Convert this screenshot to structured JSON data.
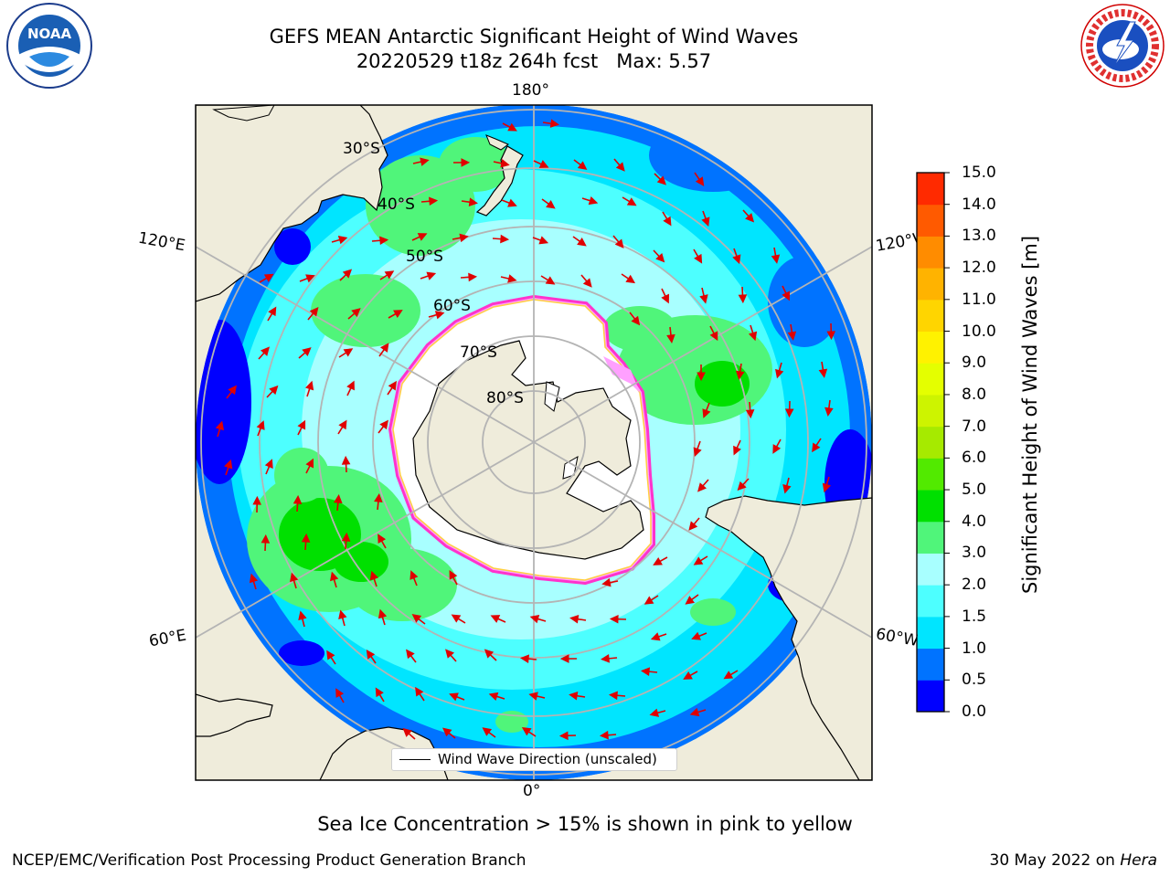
{
  "header": {
    "title_line1": "GEFS MEAN Antarctic Significant Height of Wind Waves",
    "title_line2": "20220529 t18z 264h fcst   Max: 5.57"
  },
  "logos": {
    "noaa_text": "NOAA",
    "noaa_ring_text": "NATIONAL OCEANIC AND ATMOSPHERIC ADMINISTRATION · U.S. DEPARTMENT OF COMMERCE",
    "nws_ring_text": "NATIONAL WEATHER SERVICE"
  },
  "map": {
    "projection": "south-polar-stereographic",
    "longitude_labels": {
      "top": "180°",
      "bottom": "0°",
      "left_upper": "120°E",
      "left_lower": "60°E",
      "right_upper": "120°W",
      "right_lower": "60°W"
    },
    "latitude_labels": [
      "30°S",
      "40°S",
      "50°S",
      "60°S",
      "70°S",
      "80°S"
    ],
    "legend_label": "Wind Wave Direction (unscaled)",
    "colors": {
      "land": "#efecdb",
      "ice": "#ffffff",
      "ice_edge": [
        "#ff33cc",
        "#ffa0ff",
        "#ffd040"
      ],
      "arrow": "#e00000",
      "gridline": "#b4b4b4"
    }
  },
  "colorbar": {
    "label": "Significant Height of Wind Waves [m]",
    "ticks": [
      "0.0",
      "0.5",
      "1.0",
      "1.5",
      "2.0",
      "3.0",
      "4.0",
      "5.0",
      "6.0",
      "7.0",
      "8.0",
      "9.0",
      "10.0",
      "11.0",
      "12.0",
      "13.0",
      "14.0",
      "15.0"
    ],
    "colors": [
      "#0000ff",
      "#0073ff",
      "#00e5ff",
      "#4dffff",
      "#a8ffff",
      "#50f57a",
      "#00e000",
      "#52ea00",
      "#a6ea00",
      "#cdf400",
      "#e4ff00",
      "#fff200",
      "#ffd500",
      "#ffb300",
      "#ff8c00",
      "#ff5a00",
      "#ff2a00",
      "#ff0000"
    ]
  },
  "caption": "Sea Ice Concentration > 15% is shown in pink to yellow",
  "footer": {
    "left": "NCEP/EMC/Verification Post Processing Product Generation Branch",
    "date": "30 May 2022 on",
    "machine": "Hera"
  }
}
